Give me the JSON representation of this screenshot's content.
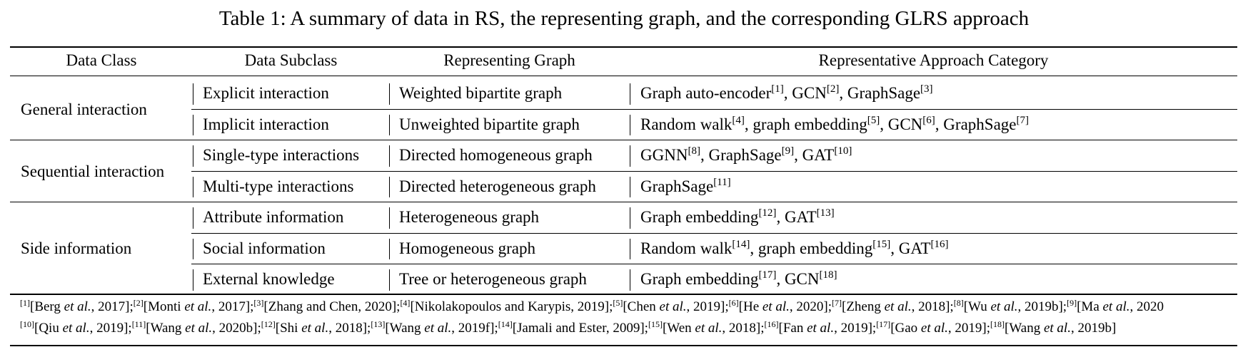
{
  "caption": "Table 1: A summary of data in RS, the representing graph, and the corresponding GLRS approach",
  "headers": {
    "data_class": "Data Class",
    "data_subclass": "Data Subclass",
    "representing_graph": "Representing Graph",
    "approach_category": "Representative Approach Category"
  },
  "groups": [
    {
      "label": "General interaction",
      "rows": [
        {
          "subclass": "Explicit interaction",
          "graph": "Weighted bipartite graph",
          "approaches": [
            {
              "t": "Graph auto-encoder",
              "r": "[1]",
              "sep": ", "
            },
            {
              "t": "GCN",
              "r": "[2]",
              "sep": ", "
            },
            {
              "t": "GraphSage",
              "r": "[3]",
              "sep": ""
            }
          ]
        },
        {
          "subclass": "Implicit interaction",
          "graph": "Unweighted bipartite graph",
          "approaches": [
            {
              "t": "Random walk",
              "r": "[4]",
              "sep": ", "
            },
            {
              "t": "graph embedding",
              "r": "[5]",
              "sep": ", "
            },
            {
              "t": "GCN",
              "r": "[6]",
              "sep": ", "
            },
            {
              "t": "GraphSage",
              "r": "[7]",
              "sep": ""
            }
          ]
        }
      ]
    },
    {
      "label": "Sequential interaction",
      "rows": [
        {
          "subclass": "Single-type interactions",
          "graph": "Directed homogeneous graph",
          "approaches": [
            {
              "t": "GGNN",
              "r": "[8]",
              "sep": ", "
            },
            {
              "t": "GraphSage",
              "r": "[9]",
              "sep": ", "
            },
            {
              "t": "GAT",
              "r": "[10]",
              "sep": ""
            }
          ]
        },
        {
          "subclass": "Multi-type interactions",
          "graph": "Directed heterogeneous graph",
          "approaches": [
            {
              "t": "GraphSage",
              "r": "[11]",
              "sep": ""
            }
          ]
        }
      ]
    },
    {
      "label": "Side information",
      "rows": [
        {
          "subclass": "Attribute information",
          "graph": "Heterogeneous graph",
          "approaches": [
            {
              "t": "Graph embedding",
              "r": "[12]",
              "sep": ", "
            },
            {
              "t": "GAT",
              "r": "[13]",
              "sep": ""
            }
          ]
        },
        {
          "subclass": "Social information",
          "graph": "Homogeneous graph",
          "approaches": [
            {
              "t": "Random walk",
              "r": "[14]",
              "sep": ", "
            },
            {
              "t": "graph embedding",
              "r": "[15]",
              "sep": ", "
            },
            {
              "t": "GAT",
              "r": "[16]",
              "sep": ""
            }
          ]
        },
        {
          "subclass": "External knowledge",
          "graph": "Tree or heterogeneous graph",
          "approaches": [
            {
              "t": "Graph embedding",
              "r": "[17]",
              "sep": ", "
            },
            {
              "t": "GCN",
              "r": "[18]",
              "sep": ""
            }
          ]
        }
      ]
    }
  ],
  "references": [
    [
      {
        "n": "[1]",
        "a": "Berg",
        "e": "et al.",
        "y": ", 2017];"
      },
      {
        "n": "[2]",
        "a": "Monti",
        "e": "et al.",
        "y": ", 2017];"
      },
      {
        "n": "[3]",
        "a": "Zhang and Chen, 2020];",
        "e": "",
        "y": ""
      },
      {
        "n": "[4]",
        "a": "Nikolakopoulos and Karypis, 2019];",
        "e": "",
        "y": ""
      },
      {
        "n": "[5]",
        "a": "Chen",
        "e": "et al.",
        "y": ", 2019];"
      },
      {
        "n": "[6]",
        "a": "He",
        "e": "et al.",
        "y": ", 2020];"
      },
      {
        "n": "[7]",
        "a": "Zheng",
        "e": "et al.",
        "y": ", 2018];"
      },
      {
        "n": "[8]",
        "a": "Wu",
        "e": "et al.",
        "y": ", 2019b];"
      },
      {
        "n": "[9]",
        "a": "Ma",
        "e": "et al.",
        "y": ", 2020"
      }
    ],
    [
      {
        "n": "[10]",
        "a": "Qiu",
        "e": "et al.",
        "y": ", 2019];"
      },
      {
        "n": "[11]",
        "a": "Wang",
        "e": "et al.",
        "y": ", 2020b];"
      },
      {
        "n": "[12]",
        "a": "Shi",
        "e": "et al.",
        "y": ", 2018];"
      },
      {
        "n": "[13]",
        "a": "Wang",
        "e": "et al.",
        "y": ", 2019f];"
      },
      {
        "n": "[14]",
        "a": "Jamali and Ester, 2009];",
        "e": "",
        "y": ""
      },
      {
        "n": "[15]",
        "a": "Wen",
        "e": "et al.",
        "y": ", 2018];"
      },
      {
        "n": "[16]",
        "a": "Fan",
        "e": "et al.",
        "y": ", 2019];"
      },
      {
        "n": "[17]",
        "a": "Gao",
        "e": "et al.",
        "y": ", 2019];"
      },
      {
        "n": "[18]",
        "a": "Wang",
        "e": "et al.",
        "y": ", 2019b]"
      }
    ]
  ]
}
